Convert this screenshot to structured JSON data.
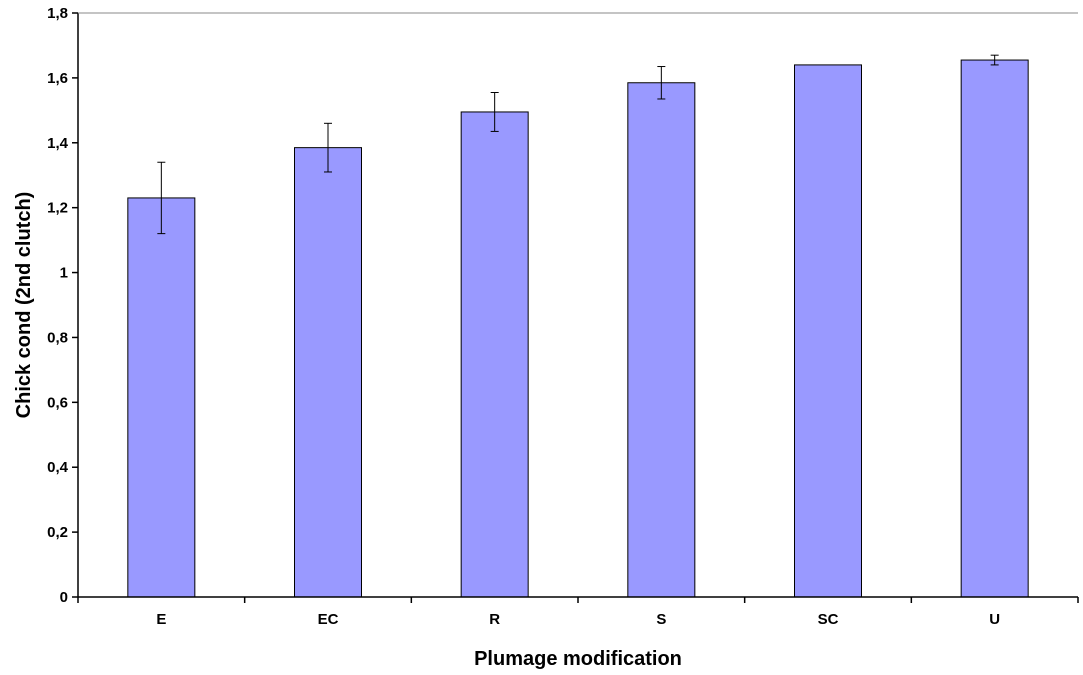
{
  "chart_data": {
    "type": "bar",
    "xlabel": "Plumage modification",
    "ylabel": "Chick cond (2nd clutch)",
    "categories": [
      "E",
      "EC",
      "R",
      "S",
      "SC",
      "U"
    ],
    "values": [
      1.23,
      1.385,
      1.495,
      1.585,
      1.64,
      1.655
    ],
    "error": [
      0.11,
      0.075,
      0.06,
      0.05,
      0.0,
      0.015
    ],
    "ylim": [
      0,
      1.8
    ],
    "yticks": [
      0,
      0.2,
      0.4,
      0.6,
      0.8,
      1,
      1.2,
      1.4,
      1.6,
      1.8
    ],
    "ytick_labels": [
      "0",
      "0,2",
      "0,4",
      "0,6",
      "0,8",
      "1",
      "1,2",
      "1,4",
      "1,6",
      "1,8"
    ],
    "bar_color": "#9999ff",
    "grid": false,
    "legend": "none"
  }
}
